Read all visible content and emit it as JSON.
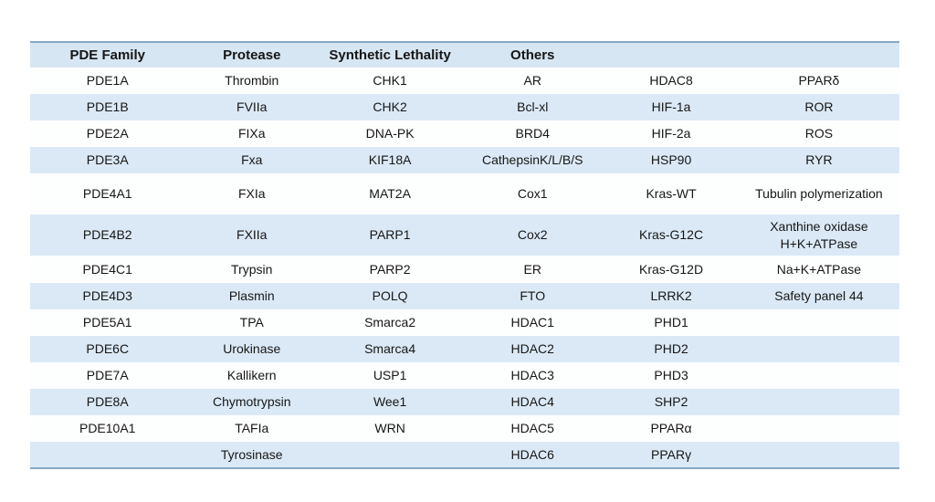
{
  "theme": {
    "header_bg": "#d7e6f3",
    "row_shade_bg": "#dbe9f6",
    "row_plain_bg": "#fdfefe",
    "border_color": "#86a9c4",
    "text_color": "#161616",
    "page_bg": "#ffffff"
  },
  "table": {
    "headers": [
      "PDE Family",
      "Protease",
      "Synthetic Lethality",
      "Others",
      "",
      ""
    ],
    "rows": [
      [
        "PDE1A",
        "Thrombin",
        "CHK1",
        "AR",
        "HDAC8",
        "PPARδ"
      ],
      [
        "PDE1B",
        "FVIIa",
        "CHK2",
        "Bcl-xl",
        "HIF-1a",
        "ROR"
      ],
      [
        "PDE2A",
        "FIXa",
        "DNA-PK",
        "BRD4",
        "HIF-2a",
        "ROS"
      ],
      [
        "PDE3A",
        "Fxa",
        "KIF18A",
        "CathepsinK/L/B/S",
        "HSP90",
        "RYR"
      ],
      [
        "PDE4A1",
        "FXIa",
        "MAT2A",
        "Cox1",
        "Kras-WT",
        "Tubulin polymerization"
      ],
      [
        "PDE4B2",
        "FXIIa",
        "PARP1",
        "Cox2",
        "Kras-G12C",
        "Xanthine oxidase\nH+K+ATPase"
      ],
      [
        "PDE4C1",
        "Trypsin",
        "PARP2",
        "ER",
        "Kras-G12D",
        "Na+K+ATPase"
      ],
      [
        "PDE4D3",
        "Plasmin",
        "POLQ",
        "FTO",
        "LRRK2",
        "Safety panel 44"
      ],
      [
        "PDE5A1",
        "TPA",
        "Smarca2",
        "HDAC1",
        "PHD1",
        ""
      ],
      [
        "PDE6C",
        "Urokinase",
        "Smarca4",
        "HDAC2",
        "PHD2",
        ""
      ],
      [
        "PDE7A",
        "Kallikern",
        "USP1",
        "HDAC3",
        "PHD3",
        ""
      ],
      [
        "PDE8A",
        "Chymotrypsin",
        "Wee1",
        "HDAC4",
        "SHP2",
        ""
      ],
      [
        "PDE10A1",
        "TAFIa",
        "WRN",
        "HDAC5",
        "PPARα",
        ""
      ],
      [
        "",
        "Tyrosinase",
        "",
        "HDAC6",
        "PPARγ",
        ""
      ]
    ]
  }
}
